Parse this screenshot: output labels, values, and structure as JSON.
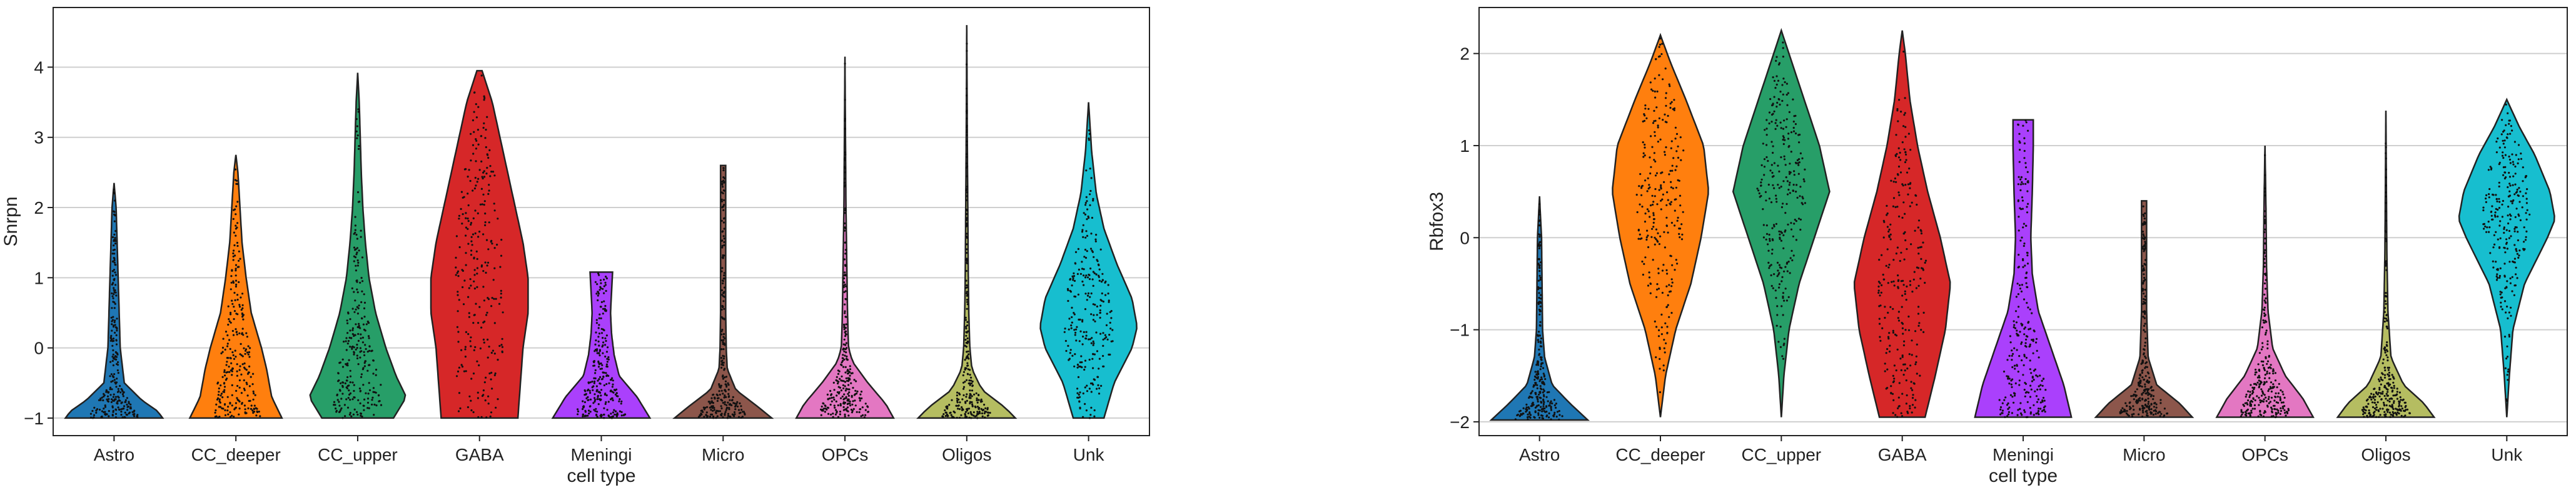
{
  "chart_data": [
    {
      "type": "violin",
      "xlabel": "cell type",
      "ylabel": "Snrpn",
      "ylim": [
        -1.25,
        4.85
      ],
      "yticks": [
        -1,
        0,
        1,
        2,
        3,
        4
      ],
      "ytick_labels": [
        "−1",
        "0",
        "1",
        "2",
        "3",
        "4"
      ],
      "grid": true,
      "categories": [
        "Astro",
        "CC_deeper",
        "CC_upper",
        "GABA",
        "Meningi",
        "Micro",
        "OPCs",
        "Oligos",
        "Unk"
      ],
      "colors": [
        "#1f77b4",
        "#ff7f0e",
        "#279e68",
        "#d62728",
        "#aa40fc",
        "#8c564b",
        "#e377c2",
        "#b5bd61",
        "#17becf"
      ],
      "violins": [
        {
          "category": "Astro",
          "min": -1.0,
          "max": 2.35,
          "profile": [
            [
              -1.0,
              0.95
            ],
            [
              -0.9,
              0.85
            ],
            [
              -0.75,
              0.55
            ],
            [
              -0.5,
              0.2
            ],
            [
              0,
              0.12
            ],
            [
              0.5,
              0.1
            ],
            [
              1.0,
              0.08
            ],
            [
              1.5,
              0.06
            ],
            [
              2.0,
              0.04
            ],
            [
              2.35,
              0.0
            ]
          ]
        },
        {
          "category": "CC_deeper",
          "min": -1.0,
          "max": 2.75,
          "profile": [
            [
              -1.0,
              0.9
            ],
            [
              -0.7,
              0.7
            ],
            [
              -0.3,
              0.6
            ],
            [
              0,
              0.5
            ],
            [
              0.5,
              0.3
            ],
            [
              1.0,
              0.2
            ],
            [
              1.5,
              0.12
            ],
            [
              2.0,
              0.08
            ],
            [
              2.5,
              0.04
            ],
            [
              2.75,
              0.0
            ]
          ]
        },
        {
          "category": "CC_upper",
          "min": -1.0,
          "max": 3.92,
          "profile": [
            [
              -1.0,
              0.7
            ],
            [
              -0.7,
              0.95
            ],
            [
              -0.4,
              0.75
            ],
            [
              0,
              0.55
            ],
            [
              0.5,
              0.35
            ],
            [
              1.0,
              0.22
            ],
            [
              1.5,
              0.15
            ],
            [
              2.0,
              0.1
            ],
            [
              2.5,
              0.07
            ],
            [
              3.0,
              0.05
            ],
            [
              3.5,
              0.03
            ],
            [
              3.92,
              0.0
            ]
          ]
        },
        {
          "category": "GABA",
          "min": -1.0,
          "max": 3.95,
          "profile": [
            [
              -1.0,
              0.75
            ],
            [
              -0.5,
              0.8
            ],
            [
              0,
              0.85
            ],
            [
              0.5,
              0.95
            ],
            [
              1.0,
              0.95
            ],
            [
              1.5,
              0.85
            ],
            [
              2.0,
              0.7
            ],
            [
              2.5,
              0.55
            ],
            [
              3.0,
              0.4
            ],
            [
              3.5,
              0.25
            ],
            [
              3.95,
              0.05
            ]
          ]
        },
        {
          "category": "Meningi",
          "min": -1.0,
          "max": 1.08,
          "profile": [
            [
              -1.0,
              0.95
            ],
            [
              -0.7,
              0.7
            ],
            [
              -0.4,
              0.35
            ],
            [
              -0.1,
              0.25
            ],
            [
              0.2,
              0.2
            ],
            [
              0.5,
              0.18
            ],
            [
              0.8,
              0.2
            ],
            [
              1.08,
              0.22
            ]
          ]
        },
        {
          "category": "Micro",
          "min": -1.0,
          "max": 2.6,
          "profile": [
            [
              -1.0,
              0.95
            ],
            [
              -0.85,
              0.7
            ],
            [
              -0.6,
              0.25
            ],
            [
              -0.3,
              0.08
            ],
            [
              0,
              0.06
            ],
            [
              0.5,
              0.05
            ],
            [
              1.0,
              0.05
            ],
            [
              1.5,
              0.05
            ],
            [
              2.0,
              0.05
            ],
            [
              2.6,
              0.05
            ]
          ]
        },
        {
          "category": "OPCs",
          "min": -1.0,
          "max": 4.15,
          "profile": [
            [
              -1.0,
              0.95
            ],
            [
              -0.8,
              0.8
            ],
            [
              -0.5,
              0.45
            ],
            [
              -0.2,
              0.15
            ],
            [
              0,
              0.07
            ],
            [
              0.5,
              0.05
            ],
            [
              1.0,
              0.04
            ],
            [
              2.0,
              0.02
            ],
            [
              3.0,
              0.01
            ],
            [
              4.15,
              0.0
            ]
          ]
        },
        {
          "category": "Oligos",
          "min": -1.0,
          "max": 4.6,
          "profile": [
            [
              -1.0,
              0.95
            ],
            [
              -0.85,
              0.75
            ],
            [
              -0.6,
              0.3
            ],
            [
              -0.3,
              0.1
            ],
            [
              0,
              0.06
            ],
            [
              0.5,
              0.04
            ],
            [
              1.0,
              0.03
            ],
            [
              2.0,
              0.02
            ],
            [
              3.0,
              0.01
            ],
            [
              4.6,
              0.0
            ]
          ]
        },
        {
          "category": "Unk",
          "min": -1.0,
          "max": 3.5,
          "profile": [
            [
              -1.0,
              0.3
            ],
            [
              -0.5,
              0.5
            ],
            [
              0,
              0.85
            ],
            [
              0.3,
              0.95
            ],
            [
              0.7,
              0.85
            ],
            [
              1.2,
              0.55
            ],
            [
              1.7,
              0.3
            ],
            [
              2.2,
              0.15
            ],
            [
              2.8,
              0.06
            ],
            [
              3.5,
              0.0
            ]
          ]
        }
      ]
    },
    {
      "type": "violin",
      "xlabel": "cell type",
      "ylabel": "Rbfox3",
      "ylim": [
        -2.15,
        2.5
      ],
      "yticks": [
        -2,
        -1,
        0,
        1,
        2
      ],
      "ytick_labels": [
        "−2",
        "−1",
        "0",
        "1",
        "2"
      ],
      "grid": true,
      "categories": [
        "Astro",
        "CC_deeper",
        "CC_upper",
        "GABA",
        "Meningi",
        "Micro",
        "OPCs",
        "Oligos",
        "Unk"
      ],
      "colors": [
        "#1f77b4",
        "#ff7f0e",
        "#279e68",
        "#d62728",
        "#aa40fc",
        "#8c564b",
        "#e377c2",
        "#b5bd61",
        "#17becf"
      ],
      "violins": [
        {
          "category": "Astro",
          "min": -1.98,
          "max": 0.45,
          "profile": [
            [
              -1.98,
              0.95
            ],
            [
              -1.8,
              0.6
            ],
            [
              -1.6,
              0.25
            ],
            [
              -1.3,
              0.1
            ],
            [
              -1.0,
              0.06
            ],
            [
              -0.5,
              0.05
            ],
            [
              0,
              0.04
            ],
            [
              0.45,
              0.0
            ]
          ]
        },
        {
          "category": "CC_deeper",
          "min": -1.95,
          "max": 2.2,
          "profile": [
            [
              -1.95,
              0.0
            ],
            [
              -1.5,
              0.1
            ],
            [
              -1.0,
              0.3
            ],
            [
              -0.5,
              0.6
            ],
            [
              0,
              0.8
            ],
            [
              0.5,
              0.95
            ],
            [
              1.0,
              0.85
            ],
            [
              1.5,
              0.5
            ],
            [
              1.9,
              0.2
            ],
            [
              2.2,
              0.0
            ]
          ]
        },
        {
          "category": "CC_upper",
          "min": -1.95,
          "max": 2.25,
          "profile": [
            [
              -1.95,
              0.0
            ],
            [
              -1.5,
              0.05
            ],
            [
              -1.0,
              0.15
            ],
            [
              -0.5,
              0.35
            ],
            [
              0,
              0.65
            ],
            [
              0.5,
              0.95
            ],
            [
              1.0,
              0.75
            ],
            [
              1.5,
              0.45
            ],
            [
              2.0,
              0.15
            ],
            [
              2.25,
              0.0
            ]
          ]
        },
        {
          "category": "GABA",
          "min": -1.95,
          "max": 2.25,
          "profile": [
            [
              -1.95,
              0.45
            ],
            [
              -1.5,
              0.65
            ],
            [
              -1.0,
              0.85
            ],
            [
              -0.5,
              0.95
            ],
            [
              0,
              0.75
            ],
            [
              0.5,
              0.5
            ],
            [
              1.0,
              0.3
            ],
            [
              1.5,
              0.15
            ],
            [
              2.0,
              0.06
            ],
            [
              2.25,
              0.0
            ]
          ]
        },
        {
          "category": "Meningi",
          "min": -1.95,
          "max": 1.28,
          "profile": [
            [
              -1.95,
              0.95
            ],
            [
              -1.6,
              0.8
            ],
            [
              -1.2,
              0.55
            ],
            [
              -0.8,
              0.3
            ],
            [
              -0.4,
              0.18
            ],
            [
              0,
              0.15
            ],
            [
              0.5,
              0.18
            ],
            [
              1.0,
              0.2
            ],
            [
              1.28,
              0.2
            ]
          ]
        },
        {
          "category": "Micro",
          "min": -1.95,
          "max": 0.4,
          "profile": [
            [
              -1.95,
              0.95
            ],
            [
              -1.8,
              0.7
            ],
            [
              -1.6,
              0.25
            ],
            [
              -1.3,
              0.08
            ],
            [
              -0.8,
              0.05
            ],
            [
              -0.3,
              0.05
            ],
            [
              0.4,
              0.05
            ]
          ]
        },
        {
          "category": "OPCs",
          "min": -1.95,
          "max": 1.0,
          "profile": [
            [
              -1.95,
              0.95
            ],
            [
              -1.75,
              0.75
            ],
            [
              -1.5,
              0.4
            ],
            [
              -1.2,
              0.15
            ],
            [
              -0.8,
              0.06
            ],
            [
              -0.3,
              0.03
            ],
            [
              0.3,
              0.02
            ],
            [
              1.0,
              0.0
            ]
          ]
        },
        {
          "category": "Oligos",
          "min": -1.95,
          "max": 1.38,
          "profile": [
            [
              -1.95,
              0.95
            ],
            [
              -1.8,
              0.75
            ],
            [
              -1.6,
              0.35
            ],
            [
              -1.3,
              0.1
            ],
            [
              -0.8,
              0.04
            ],
            [
              -0.2,
              0.02
            ],
            [
              0.5,
              0.01
            ],
            [
              1.38,
              0.0
            ]
          ]
        },
        {
          "category": "Unk",
          "min": -1.95,
          "max": 1.5,
          "profile": [
            [
              -1.95,
              0.0
            ],
            [
              -1.5,
              0.05
            ],
            [
              -1.0,
              0.12
            ],
            [
              -0.5,
              0.35
            ],
            [
              0,
              0.8
            ],
            [
              0.2,
              0.95
            ],
            [
              0.5,
              0.85
            ],
            [
              0.9,
              0.55
            ],
            [
              1.2,
              0.25
            ],
            [
              1.5,
              0.0
            ]
          ]
        }
      ]
    }
  ]
}
